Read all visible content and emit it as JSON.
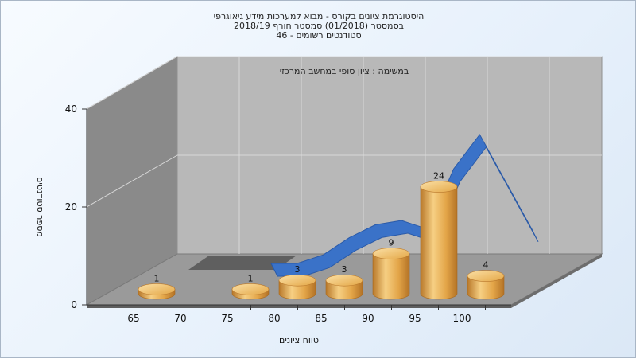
{
  "chart_data": {
    "type": "bar",
    "title_lines": [
      "היסטוגרמת ציונים בקורס - מבוא למערכות מידע גיאוגרפי",
      "בסמסטר  (01/2018)  סמסטר חורף 2018/19",
      "46 - סטודנטים רשומים"
    ],
    "subtitle": "במשימה : ציון סופי במחשב המרכזי",
    "xlabel": "טווח ציונים",
    "ylabel": "מספר סטודנטים",
    "x_ticks": [
      "65",
      "70",
      "75",
      "80",
      "85",
      "90",
      "95",
      "100"
    ],
    "y_ticks": [
      "0",
      "20",
      "40"
    ],
    "ylim": [
      0,
      40
    ],
    "bars": [
      {
        "x": 65,
        "value": 1,
        "label": "1"
      },
      {
        "x": 75,
        "value": 1,
        "label": "1"
      },
      {
        "x": 80,
        "value": 3,
        "label": "3"
      },
      {
        "x": 85,
        "value": 3,
        "label": "3"
      },
      {
        "x": 90,
        "value": 9,
        "label": "9"
      },
      {
        "x": 95,
        "value": 24,
        "label": "24"
      },
      {
        "x": 100,
        "value": 4,
        "label": "4"
      }
    ],
    "curve": {
      "type": "area",
      "color": "#3a72c8",
      "values": [
        0,
        0,
        2,
        6,
        9,
        10,
        8,
        22,
        30,
        19,
        8
      ]
    },
    "colors": {
      "bar": "#e0a040",
      "curve": "#3a72c8"
    }
  }
}
